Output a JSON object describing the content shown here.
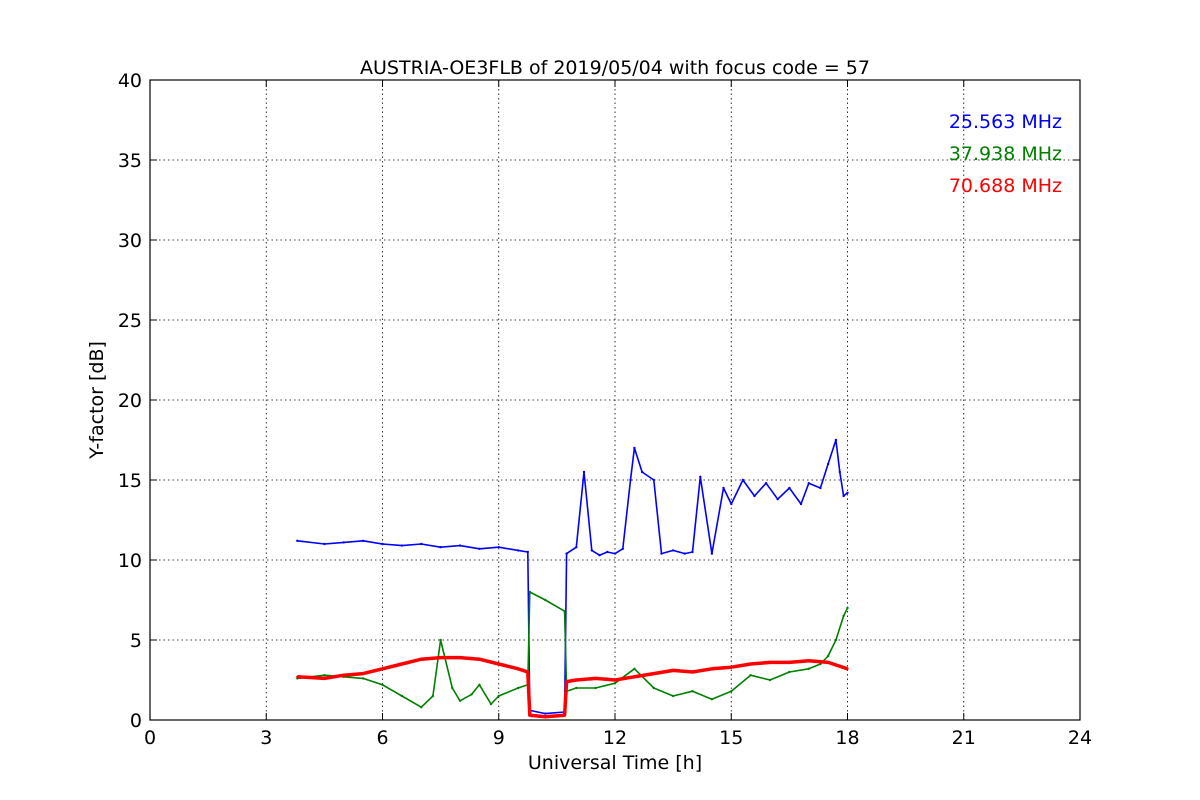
{
  "chart_data": {
    "type": "line",
    "title": "AUSTRIA-OE3FLB of 2019/05/04 with focus code = 57",
    "xlabel": "Universal Time [h]",
    "ylabel": "Y-factor [dB]",
    "xlim": [
      0,
      24
    ],
    "ylim": [
      0,
      40
    ],
    "xticks": [
      0,
      3,
      6,
      9,
      12,
      15,
      18,
      21,
      24
    ],
    "yticks": [
      0,
      5,
      10,
      15,
      20,
      25,
      30,
      35,
      40
    ],
    "xtick_labels": [
      "0",
      "3",
      "6",
      "9",
      "12",
      "15",
      "18",
      "21",
      "24"
    ],
    "ytick_labels": [
      "0",
      "5",
      "10",
      "15",
      "20",
      "25",
      "30",
      "35",
      "40"
    ],
    "grid": true,
    "legend_position": "top-right",
    "series": [
      {
        "name": "25.563 MHz",
        "color": "#0000ff",
        "x": [
          3.8,
          4.5,
          5.0,
          5.5,
          6.0,
          6.5,
          7.0,
          7.5,
          8.0,
          8.5,
          9.0,
          9.5,
          9.75,
          9.8,
          10.2,
          10.7,
          10.75,
          11.0,
          11.2,
          11.4,
          11.6,
          11.8,
          12.0,
          12.2,
          12.4,
          12.5,
          12.7,
          13.0,
          13.2,
          13.5,
          13.8,
          14.0,
          14.2,
          14.5,
          14.8,
          15.0,
          15.3,
          15.6,
          15.9,
          16.2,
          16.5,
          16.8,
          17.0,
          17.3,
          17.5,
          17.7,
          17.8,
          17.9,
          18.0
        ],
        "values": [
          11.2,
          11.0,
          11.1,
          11.2,
          11.0,
          10.9,
          11.0,
          10.8,
          10.9,
          10.7,
          10.8,
          10.6,
          10.5,
          0.6,
          0.4,
          0.5,
          10.4,
          10.8,
          15.5,
          10.6,
          10.3,
          10.5,
          10.4,
          10.7,
          15.0,
          17.0,
          15.5,
          15.0,
          10.4,
          10.6,
          10.4,
          10.5,
          15.2,
          10.4,
          14.5,
          13.5,
          15.0,
          14.0,
          14.8,
          13.8,
          14.5,
          13.5,
          14.8,
          14.5,
          16.0,
          17.5,
          15.5,
          14.0,
          14.2
        ]
      },
      {
        "name": "37.938 MHz",
        "color": "#008000",
        "x": [
          3.8,
          4.5,
          5.0,
          5.5,
          6.0,
          6.5,
          7.0,
          7.3,
          7.5,
          7.8,
          8.0,
          8.3,
          8.5,
          8.8,
          9.0,
          9.5,
          9.75,
          9.8,
          10.2,
          10.7,
          10.75,
          11.0,
          11.5,
          12.0,
          12.5,
          13.0,
          13.5,
          14.0,
          14.5,
          15.0,
          15.5,
          16.0,
          16.5,
          17.0,
          17.3,
          17.5,
          17.7,
          17.9,
          18.0
        ],
        "values": [
          2.6,
          2.8,
          2.7,
          2.6,
          2.2,
          1.5,
          0.8,
          1.5,
          5.0,
          2.0,
          1.2,
          1.6,
          2.2,
          1.0,
          1.5,
          2.0,
          2.2,
          8.0,
          7.5,
          6.8,
          1.8,
          2.0,
          2.0,
          2.3,
          3.2,
          2.0,
          1.5,
          1.8,
          1.3,
          1.8,
          2.8,
          2.5,
          3.0,
          3.2,
          3.5,
          4.0,
          5.0,
          6.5,
          7.0
        ]
      },
      {
        "name": "70.688 MHz",
        "color": "#ff0000",
        "x": [
          3.8,
          4.5,
          5.0,
          5.5,
          6.0,
          6.5,
          7.0,
          7.5,
          8.0,
          8.5,
          9.0,
          9.5,
          9.75,
          9.8,
          10.2,
          10.7,
          10.75,
          11.0,
          11.5,
          12.0,
          12.5,
          13.0,
          13.5,
          14.0,
          14.5,
          15.0,
          15.5,
          16.0,
          16.5,
          17.0,
          17.5,
          18.0
        ],
        "values": [
          2.7,
          2.6,
          2.8,
          2.9,
          3.2,
          3.5,
          3.8,
          3.9,
          3.9,
          3.8,
          3.5,
          3.2,
          3.0,
          0.3,
          0.2,
          0.3,
          2.4,
          2.5,
          2.6,
          2.5,
          2.7,
          2.9,
          3.1,
          3.0,
          3.2,
          3.3,
          3.5,
          3.6,
          3.6,
          3.7,
          3.6,
          3.2
        ]
      }
    ]
  }
}
